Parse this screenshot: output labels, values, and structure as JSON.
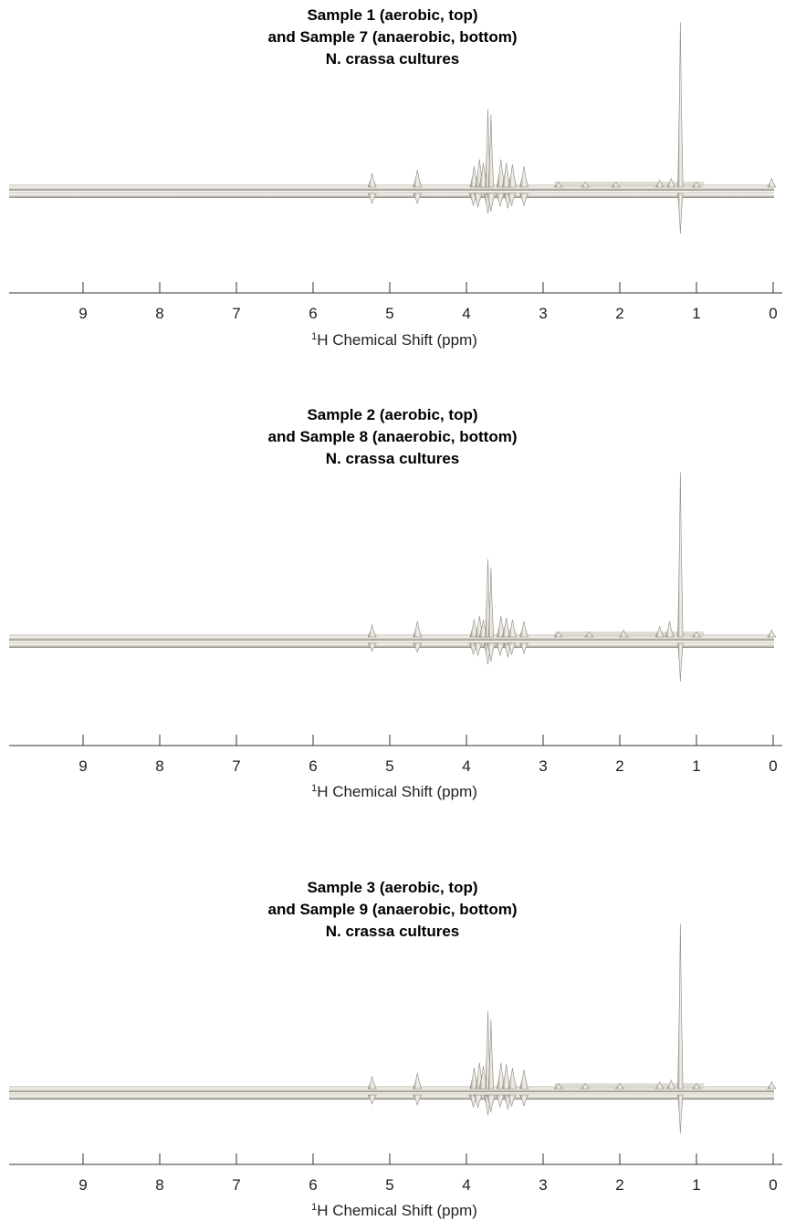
{
  "chart_data": [
    {
      "type": "line",
      "title_lines": [
        "Sample 1 (aerobic, top)",
        "and Sample 7 (anaerobic, bottom)",
        "N. crassa cultures"
      ],
      "xlabel_sup": "1",
      "xlabel": "H Chemical Shift (ppm)",
      "xlim": [
        9.9,
        -0.05
      ],
      "x_reversed": true,
      "xticks": [
        9,
        8,
        7,
        6,
        5,
        4,
        3,
        2,
        1,
        0
      ],
      "grid": false,
      "series": [
        {
          "peaks": [
            {
              "ppm": 5.23,
              "height": 0.08
            },
            {
              "ppm": 4.64,
              "height": 0.1
            },
            {
              "ppm": 3.9,
              "height": 0.12
            },
            {
              "ppm": 3.83,
              "height": 0.16
            },
            {
              "ppm": 3.78,
              "height": 0.14
            },
            {
              "ppm": 3.72,
              "height": 0.45
            },
            {
              "ppm": 3.68,
              "height": 0.42
            },
            {
              "ppm": 3.55,
              "height": 0.16
            },
            {
              "ppm": 3.48,
              "height": 0.14
            },
            {
              "ppm": 3.4,
              "height": 0.13
            },
            {
              "ppm": 3.25,
              "height": 0.12
            },
            {
              "ppm": 2.8,
              "height": 0.03
            },
            {
              "ppm": 2.45,
              "height": 0.03
            },
            {
              "ppm": 2.05,
              "height": 0.03
            },
            {
              "ppm": 1.48,
              "height": 0.04
            },
            {
              "ppm": 1.33,
              "height": 0.05
            },
            {
              "ppm": 1.21,
              "height": 0.95
            },
            {
              "ppm": 1.0,
              "height": 0.03
            },
            {
              "ppm": 0.02,
              "height": 0.05
            }
          ]
        },
        {
          "peaks": [
            {
              "ppm": 5.23,
              "height": 0.1
            },
            {
              "ppm": 4.64,
              "height": 0.1
            },
            {
              "ppm": 3.91,
              "height": 0.12
            },
            {
              "ppm": 3.85,
              "height": 0.14
            },
            {
              "ppm": 3.72,
              "height": 0.2
            },
            {
              "ppm": 3.68,
              "height": 0.18
            },
            {
              "ppm": 3.56,
              "height": 0.13
            },
            {
              "ppm": 3.46,
              "height": 0.15
            },
            {
              "ppm": 3.41,
              "height": 0.12
            },
            {
              "ppm": 3.25,
              "height": 0.12
            },
            {
              "ppm": 1.21,
              "height": 0.4
            }
          ]
        }
      ]
    },
    {
      "type": "line",
      "title_lines": [
        "Sample 2 (aerobic, top)",
        "and Sample 8 (anaerobic, bottom)",
        "N. crassa cultures"
      ],
      "xlabel_sup": "1",
      "xlabel": "H Chemical Shift (ppm)",
      "xlim": [
        9.9,
        -0.05
      ],
      "x_reversed": true,
      "xticks": [
        9,
        8,
        7,
        6,
        5,
        4,
        3,
        2,
        1,
        0
      ],
      "grid": false,
      "series": [
        {
          "peaks": [
            {
              "ppm": 5.23,
              "height": 0.07
            },
            {
              "ppm": 4.64,
              "height": 0.09
            },
            {
              "ppm": 3.9,
              "height": 0.1
            },
            {
              "ppm": 3.83,
              "height": 0.12
            },
            {
              "ppm": 3.78,
              "height": 0.1
            },
            {
              "ppm": 3.72,
              "height": 0.45
            },
            {
              "ppm": 3.68,
              "height": 0.4
            },
            {
              "ppm": 3.55,
              "height": 0.12
            },
            {
              "ppm": 3.48,
              "height": 0.11
            },
            {
              "ppm": 3.4,
              "height": 0.1
            },
            {
              "ppm": 3.25,
              "height": 0.09
            },
            {
              "ppm": 2.8,
              "height": 0.03
            },
            {
              "ppm": 2.4,
              "height": 0.03
            },
            {
              "ppm": 1.95,
              "height": 0.04
            },
            {
              "ppm": 1.48,
              "height": 0.06
            },
            {
              "ppm": 1.35,
              "height": 0.09
            },
            {
              "ppm": 1.21,
              "height": 0.95
            },
            {
              "ppm": 1.0,
              "height": 0.03
            },
            {
              "ppm": 0.02,
              "height": 0.04
            }
          ]
        },
        {
          "peaks": [
            {
              "ppm": 5.23,
              "height": 0.08
            },
            {
              "ppm": 4.64,
              "height": 0.09
            },
            {
              "ppm": 3.91,
              "height": 0.11
            },
            {
              "ppm": 3.85,
              "height": 0.12
            },
            {
              "ppm": 3.72,
              "height": 0.21
            },
            {
              "ppm": 3.68,
              "height": 0.18
            },
            {
              "ppm": 3.56,
              "height": 0.12
            },
            {
              "ppm": 3.46,
              "height": 0.14
            },
            {
              "ppm": 3.41,
              "height": 0.11
            },
            {
              "ppm": 3.25,
              "height": 0.1
            },
            {
              "ppm": 1.21,
              "height": 0.38
            }
          ]
        }
      ]
    },
    {
      "type": "line",
      "title_lines": [
        "Sample 3 (aerobic, top)",
        "and Sample 9 (anaerobic, bottom)",
        "N. crassa cultures"
      ],
      "xlabel_sup": "1",
      "xlabel": "H Chemical Shift (ppm)",
      "xlim": [
        9.9,
        -0.05
      ],
      "x_reversed": true,
      "xticks": [
        9,
        8,
        7,
        6,
        5,
        4,
        3,
        2,
        1,
        0
      ],
      "grid": false,
      "series": [
        {
          "peaks": [
            {
              "ppm": 5.23,
              "height": 0.07
            },
            {
              "ppm": 4.64,
              "height": 0.09
            },
            {
              "ppm": 3.9,
              "height": 0.12
            },
            {
              "ppm": 3.83,
              "height": 0.15
            },
            {
              "ppm": 3.78,
              "height": 0.13
            },
            {
              "ppm": 3.72,
              "height": 0.45
            },
            {
              "ppm": 3.68,
              "height": 0.4
            },
            {
              "ppm": 3.55,
              "height": 0.15
            },
            {
              "ppm": 3.48,
              "height": 0.14
            },
            {
              "ppm": 3.4,
              "height": 0.12
            },
            {
              "ppm": 3.25,
              "height": 0.11
            },
            {
              "ppm": 2.8,
              "height": 0.03
            },
            {
              "ppm": 2.45,
              "height": 0.03
            },
            {
              "ppm": 2.0,
              "height": 0.03
            },
            {
              "ppm": 1.48,
              "height": 0.04
            },
            {
              "ppm": 1.33,
              "height": 0.05
            },
            {
              "ppm": 1.21,
              "height": 0.95
            },
            {
              "ppm": 1.0,
              "height": 0.03
            },
            {
              "ppm": 0.02,
              "height": 0.04
            }
          ]
        },
        {
          "peaks": [
            {
              "ppm": 5.23,
              "height": 0.09
            },
            {
              "ppm": 4.64,
              "height": 0.1
            },
            {
              "ppm": 3.91,
              "height": 0.12
            },
            {
              "ppm": 3.85,
              "height": 0.13
            },
            {
              "ppm": 3.72,
              "height": 0.2
            },
            {
              "ppm": 3.68,
              "height": 0.17
            },
            {
              "ppm": 3.56,
              "height": 0.12
            },
            {
              "ppm": 3.46,
              "height": 0.14
            },
            {
              "ppm": 3.41,
              "height": 0.11
            },
            {
              "ppm": 3.25,
              "height": 0.11
            },
            {
              "ppm": 1.21,
              "height": 0.38
            }
          ]
        }
      ]
    }
  ],
  "colors": {
    "spectrum_fill": "#d7d4cc",
    "spectrum_highlight": "#f2f0ea",
    "spectrum_edge": "#8f8a80",
    "axis": "#333333",
    "text": "#000000"
  }
}
